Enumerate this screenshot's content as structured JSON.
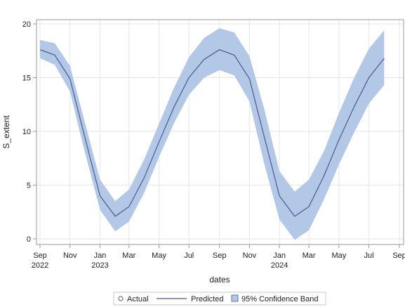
{
  "chart_data": {
    "type": "line",
    "xlabel": "dates",
    "ylabel": "S_extent",
    "ylim": [
      0,
      20
    ],
    "xlim": [
      "2022-09-01",
      "2024-09-01"
    ],
    "grid": true,
    "legend_position": "bottom",
    "colors": {
      "predicted": "#4a5a8c",
      "band": "#b3c8e6",
      "grid": "#e6e6e6",
      "axis": "#999999"
    },
    "y_ticks": [
      0,
      5,
      10,
      15,
      20
    ],
    "x_ticks": [
      {
        "date": "2022-09-01",
        "label": "Sep",
        "year": "2022"
      },
      {
        "date": "2022-11-01",
        "label": "Nov",
        "year": ""
      },
      {
        "date": "2023-01-01",
        "label": "Jan",
        "year": "2023"
      },
      {
        "date": "2023-03-01",
        "label": "Mar",
        "year": ""
      },
      {
        "date": "2023-05-01",
        "label": "May",
        "year": ""
      },
      {
        "date": "2023-07-01",
        "label": "Jul",
        "year": ""
      },
      {
        "date": "2023-09-01",
        "label": "Sep",
        "year": ""
      },
      {
        "date": "2023-11-01",
        "label": "Nov",
        "year": ""
      },
      {
        "date": "2024-01-01",
        "label": "Jan",
        "year": "2024"
      },
      {
        "date": "2024-03-01",
        "label": "Mar",
        "year": ""
      },
      {
        "date": "2024-05-01",
        "label": "May",
        "year": ""
      },
      {
        "date": "2024-07-01",
        "label": "Jul",
        "year": ""
      },
      {
        "date": "2024-09-01",
        "label": "Sep",
        "year": ""
      }
    ],
    "series": [
      {
        "name": "Predicted",
        "x": [
          "2022-09-01",
          "2022-10-01",
          "2022-11-01",
          "2022-12-01",
          "2023-01-01",
          "2023-02-01",
          "2023-03-01",
          "2023-04-01",
          "2023-05-01",
          "2023-06-01",
          "2023-07-01",
          "2023-08-01",
          "2023-09-01",
          "2023-10-01",
          "2023-11-01",
          "2023-12-01",
          "2024-01-01",
          "2024-02-01",
          "2024-03-01",
          "2024-04-01",
          "2024-05-01",
          "2024-06-01",
          "2024-07-01",
          "2024-08-01"
        ],
        "values": [
          17.6,
          17.1,
          14.9,
          9.5,
          4.0,
          2.1,
          3.0,
          5.7,
          9.0,
          12.3,
          15.0,
          16.7,
          17.6,
          17.1,
          14.9,
          9.5,
          4.0,
          2.1,
          3.0,
          5.9,
          9.2,
          12.3,
          15.0,
          16.8
        ]
      },
      {
        "name": "95% Confidence Band",
        "x": [
          "2022-09-01",
          "2022-10-01",
          "2022-11-01",
          "2022-12-01",
          "2023-01-01",
          "2023-02-01",
          "2023-03-01",
          "2023-04-01",
          "2023-05-01",
          "2023-06-01",
          "2023-07-01",
          "2023-08-01",
          "2023-09-01",
          "2023-10-01",
          "2023-11-01",
          "2023-12-01",
          "2024-01-01",
          "2024-02-01",
          "2024-03-01",
          "2024-04-01",
          "2024-05-01",
          "2024-06-01",
          "2024-07-01",
          "2024-08-01"
        ],
        "lower": [
          16.8,
          16.2,
          13.7,
          8.1,
          2.7,
          0.7,
          1.6,
          4.3,
          7.6,
          10.8,
          13.4,
          15.0,
          15.7,
          15.2,
          12.8,
          7.0,
          1.8,
          -0.1,
          0.8,
          3.7,
          6.9,
          9.9,
          12.6,
          14.3
        ],
        "upper": [
          18.5,
          18.2,
          16.1,
          10.9,
          5.5,
          3.5,
          4.6,
          7.4,
          10.7,
          14.1,
          16.9,
          18.7,
          19.6,
          19.2,
          17.0,
          12.1,
          6.3,
          4.4,
          5.5,
          8.2,
          11.7,
          15.0,
          17.7,
          19.4
        ]
      }
    ],
    "legend": [
      {
        "key": "actual",
        "label": "Actual"
      },
      {
        "key": "predicted",
        "label": "Predicted"
      },
      {
        "key": "band",
        "label": "95% Confidence Band"
      }
    ]
  }
}
